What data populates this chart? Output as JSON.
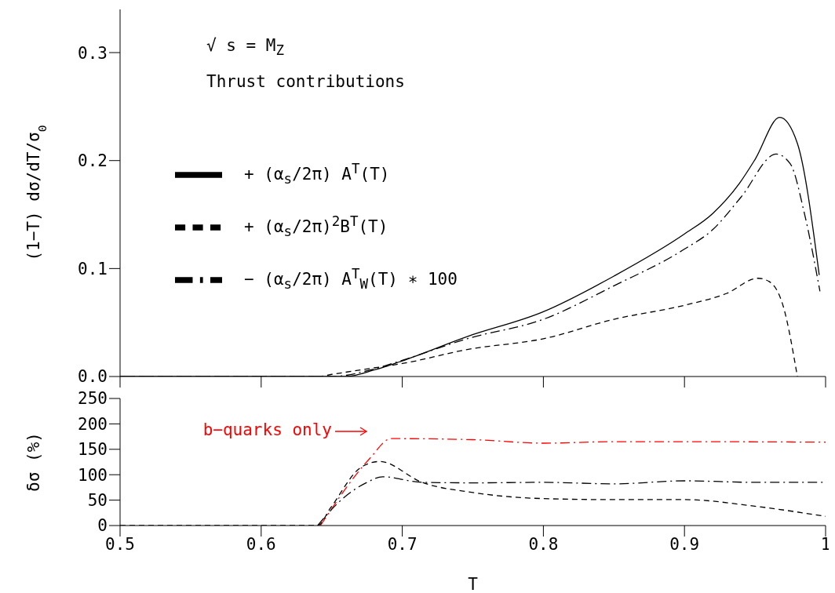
{
  "chart_data": [
    {
      "type": "line",
      "ylabel": "(1−T) dσ/dT/σ$_{0}$",
      "xlim": [
        0.5,
        1
      ],
      "xticks": [
        {
          "value": 0.5,
          "label": null
        },
        {
          "value": 0.6,
          "label": null
        },
        {
          "value": 0.7,
          "label": null
        },
        {
          "value": 0.8,
          "label": null
        },
        {
          "value": 0.9,
          "label": null
        },
        {
          "value": 1,
          "label": null
        }
      ],
      "ylim": [
        0,
        0.34
      ],
      "yticks": [
        {
          "value": 0,
          "label": "0.0"
        },
        0.1,
        0.2,
        0.3
      ],
      "tick_labels": "y",
      "grid": false,
      "legend": "left",
      "marker": "none",
      "annotations": [
        "√ s = M$_{Z}$",
        "Thrust contributions"
      ],
      "series": [
        {
          "name": "+ (α$_{s}$/2π) A$^{T}$(T)",
          "color": "#000000",
          "line_style": "solid",
          "x": [
            0.5,
            0.66,
            0.68,
            0.7,
            0.746,
            0.8,
            0.85,
            0.9,
            0.92,
            0.939,
            0.95,
            0.9675,
            0.98,
            0.9955
          ],
          "values": [
            0,
            0,
            0.006,
            0.0145,
            0.037,
            0.06,
            0.093,
            0.132,
            0.151,
            0.179,
            0.201,
            0.24,
            0.216,
            0.094
          ]
        },
        {
          "name": "+ (α$_{s}$/2π)$^{2}$B$^{T}$(T)",
          "color": "#000000",
          "line_style": "dashed",
          "x": [
            0.5,
            0.64,
            0.65,
            0.68,
            0.7,
            0.746,
            0.8,
            0.85,
            0.9,
            0.93,
            0.952,
            0.96,
            0.97,
            0.98
          ],
          "values": [
            0,
            0,
            0.002,
            0.008,
            0.012,
            0.025,
            0.035,
            0.053,
            0.066,
            0.077,
            0.091,
            0.088,
            0.065,
            0
          ]
        },
        {
          "name": "− (α$_{s}$/2π) A$^{T}$$_{W}$(T) ∗ 100",
          "color": "#000000",
          "line_style": "dashdot",
          "x": [
            0.5,
            0.65,
            0.68,
            0.7,
            0.746,
            0.8,
            0.85,
            0.9,
            0.92,
            0.94,
            0.965,
            0.975,
            0.985,
            0.996
          ],
          "values": [
            0,
            0,
            0.007,
            0.015,
            0.035,
            0.053,
            0.084,
            0.118,
            0.136,
            0.166,
            0.206,
            0.197,
            0.151,
            0.079
          ]
        }
      ]
    },
    {
      "type": "line",
      "xlabel": "T",
      "ylabel": "δσ (%)",
      "xlim": [
        0.5,
        1
      ],
      "xticks": [
        0.5,
        0.6,
        0.7,
        0.8,
        0.9,
        1
      ],
      "ylim": [
        0,
        250
      ],
      "yticks": [
        0,
        50,
        100,
        150,
        200,
        250
      ],
      "grid": false,
      "legend": false,
      "marker": "none",
      "annotations": [
        "b−quarks only"
      ],
      "series": [
        {
          "color": "#ff0000",
          "line_style": "dashdot",
          "x": [
            0.642,
            0.677,
            0.692,
            0.75,
            0.8,
            0.85,
            0.9,
            1
          ],
          "values": [
            0,
            132,
            171,
            169,
            162,
            165,
            165,
            164
          ]
        },
        {
          "color": "#000000",
          "line_style": "dashed",
          "x": [
            0.5,
            0.64,
            0.649,
            0.671,
            0.684,
            0.714,
            0.75,
            0.8,
            0.85,
            0.9,
            0.95,
            1
          ],
          "values": [
            0,
            0,
            34,
            115,
            126,
            85,
            65,
            53,
            51,
            51,
            38,
            18
          ]
        },
        {
          "color": "#000000",
          "line_style": "dashdot",
          "x": [
            0.64,
            0.657,
            0.675,
            0.686,
            0.714,
            0.75,
            0.8,
            0.85,
            0.9,
            0.95,
            1
          ],
          "values": [
            0,
            51,
            85,
            96,
            85,
            84,
            85,
            82,
            88,
            85,
            85
          ]
        }
      ]
    }
  ]
}
